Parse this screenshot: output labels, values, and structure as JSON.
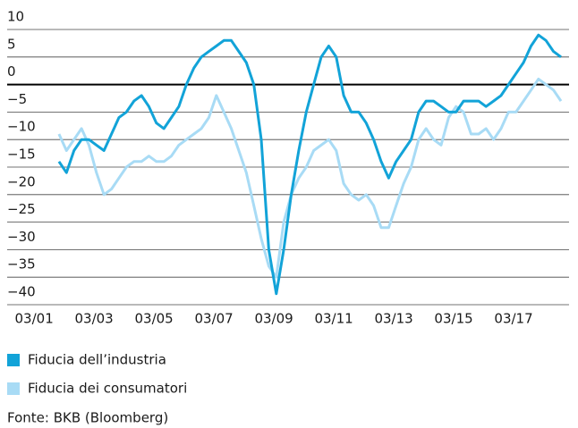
{
  "chart_data": {
    "type": "line",
    "x": [
      2002.0,
      2002.25,
      2002.5,
      2002.75,
      2003.0,
      2003.25,
      2003.5,
      2003.75,
      2004.0,
      2004.25,
      2004.5,
      2004.75,
      2005.0,
      2005.25,
      2005.5,
      2005.75,
      2006.0,
      2006.25,
      2006.5,
      2006.75,
      2007.0,
      2007.25,
      2007.5,
      2007.75,
      2008.0,
      2008.25,
      2008.5,
      2008.75,
      2009.0,
      2009.25,
      2009.5,
      2009.75,
      2010.0,
      2010.25,
      2010.5,
      2010.75,
      2011.0,
      2011.25,
      2011.5,
      2011.75,
      2012.0,
      2012.25,
      2012.5,
      2012.75,
      2013.0,
      2013.25,
      2013.5,
      2013.75,
      2014.0,
      2014.25,
      2014.5,
      2014.75,
      2015.0,
      2015.25,
      2015.5,
      2015.75,
      2016.0,
      2016.25,
      2016.5,
      2016.75,
      2017.0,
      2017.25,
      2017.5,
      2017.75,
      2018.0,
      2018.25,
      2018.5,
      2018.75
    ],
    "series": [
      {
        "name": "Fiducia dell’industria",
        "color": "#12a3d8",
        "values": [
          -14,
          -16,
          -12,
          -10,
          -10,
          -11,
          -12,
          -9,
          -6,
          -5,
          -3,
          -2,
          -4,
          -7,
          -8,
          -6,
          -4,
          0,
          3,
          5,
          6,
          7,
          8,
          8,
          6,
          4,
          0,
          -10,
          -30,
          -38,
          -30,
          -20,
          -12,
          -5,
          0,
          5,
          7,
          5,
          -2,
          -5,
          -5,
          -7,
          -10,
          -14,
          -17,
          -14,
          -12,
          -10,
          -5,
          -3,
          -3,
          -4,
          -5,
          -5,
          -3,
          -3,
          -3,
          -4,
          -3,
          -2,
          0,
          2,
          4,
          7,
          9,
          8,
          6,
          5
        ]
      },
      {
        "name": "Fiducia dei consumatori",
        "color": "#a8dbf5",
        "values": [
          -9,
          -12,
          -10,
          -8,
          -11,
          -16,
          -20,
          -19,
          -17,
          -15,
          -14,
          -14,
          -13,
          -14,
          -14,
          -13,
          -11,
          -10,
          -9,
          -8,
          -6,
          -2,
          -5,
          -8,
          -12,
          -16,
          -22,
          -28,
          -33,
          -35,
          -25,
          -20,
          -17,
          -15,
          -12,
          -11,
          -10,
          -12,
          -18,
          -20,
          -21,
          -20,
          -22,
          -26,
          -26,
          -22,
          -18,
          -15,
          -10,
          -8,
          -10,
          -11,
          -6,
          -4,
          -5,
          -9,
          -9,
          -8,
          -10,
          -8,
          -5,
          -5,
          -3,
          -1,
          1,
          0,
          -1,
          -3
        ]
      }
    ],
    "xlim": [
      2000.27,
      2019.02
    ],
    "xticks": [
      {
        "value": 2001.17,
        "label": "03/01"
      },
      {
        "value": 2003.17,
        "label": "03/03"
      },
      {
        "value": 2005.17,
        "label": "03/05"
      },
      {
        "value": 2007.17,
        "label": "03/07"
      },
      {
        "value": 2009.17,
        "label": "03/09"
      },
      {
        "value": 2011.17,
        "label": "03/11"
      },
      {
        "value": 2013.17,
        "label": "03/13"
      },
      {
        "value": 2015.17,
        "label": "03/15"
      },
      {
        "value": 2017.17,
        "label": "03/17"
      }
    ],
    "ylim": [
      -40,
      10
    ],
    "yticks": [
      10,
      5,
      0,
      {
        "value": -5,
        "label": "−5"
      },
      {
        "value": -10,
        "label": "−10"
      },
      {
        "value": -15,
        "label": "−15"
      },
      {
        "value": -20,
        "label": "−20"
      },
      {
        "value": -25,
        "label": "−25"
      },
      {
        "value": -30,
        "label": "−30"
      },
      {
        "value": -35,
        "label": "−35"
      },
      {
        "value": -40,
        "label": "−40"
      }
    ],
    "grid": true,
    "source": "Fonte: BKB (Bloomberg)"
  }
}
